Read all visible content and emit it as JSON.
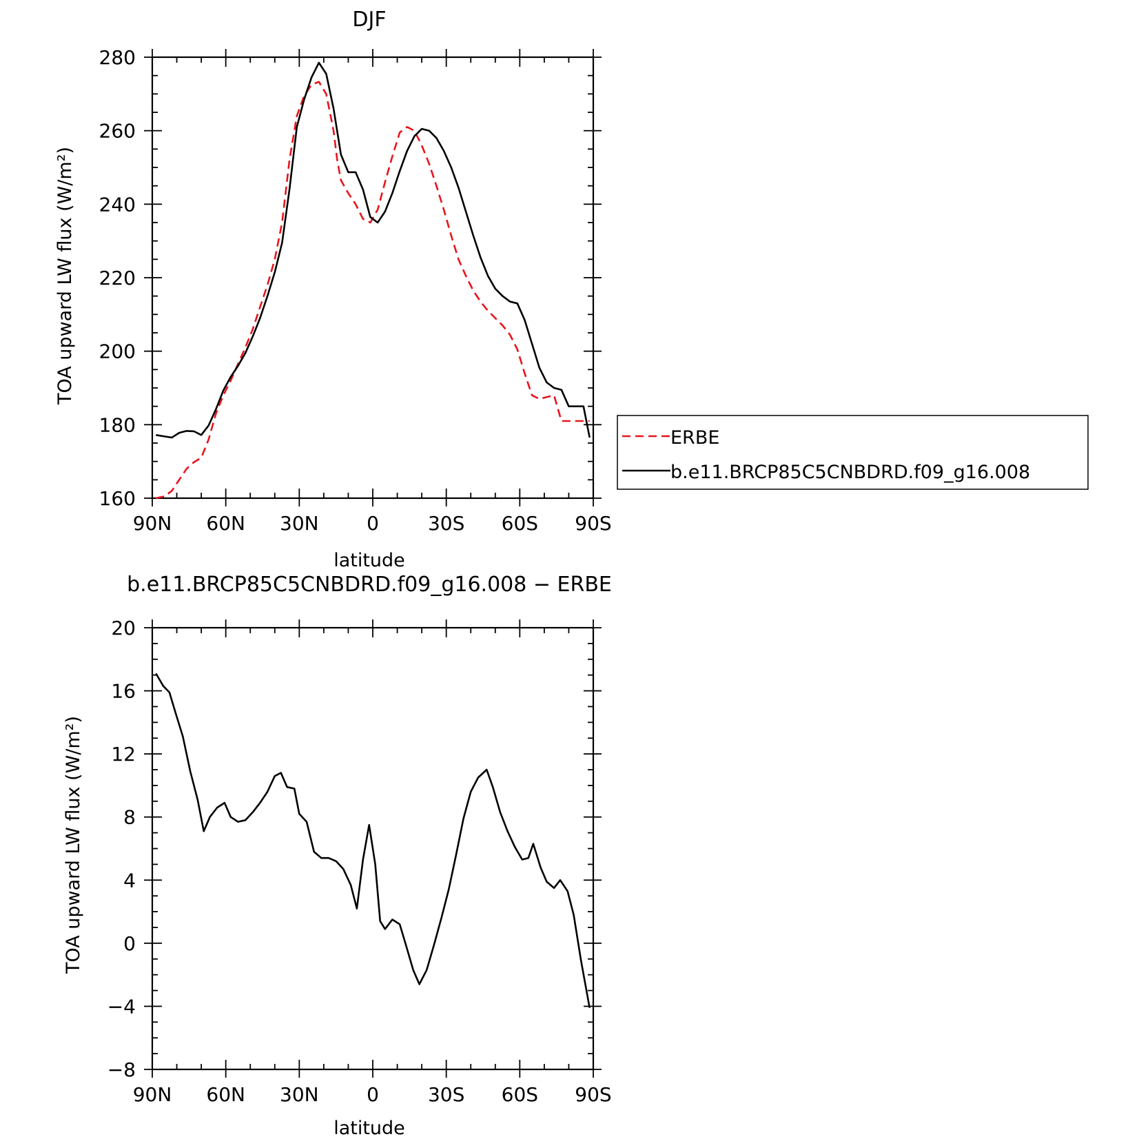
{
  "chart_data": [
    {
      "type": "line",
      "title": "DJF",
      "xlabel": "latitude",
      "ylabel": "TOA upward LW flux (W/m²)",
      "xlim": [
        90,
        -90
      ],
      "ylim": [
        160,
        280
      ],
      "x_ticks": [
        {
          "value": 90,
          "label": "90N"
        },
        {
          "value": 60,
          "label": "60N"
        },
        {
          "value": 30,
          "label": "30N"
        },
        {
          "value": 0,
          "label": "0"
        },
        {
          "value": -30,
          "label": "30S"
        },
        {
          "value": -60,
          "label": "60S"
        },
        {
          "value": -90,
          "label": "90S"
        }
      ],
      "y_ticks": [
        {
          "value": 160,
          "label": "160"
        },
        {
          "value": 180,
          "label": "180"
        },
        {
          "value": 200,
          "label": "200"
        },
        {
          "value": 220,
          "label": "220"
        },
        {
          "value": 240,
          "label": "240"
        },
        {
          "value": 260,
          "label": "260"
        },
        {
          "value": 280,
          "label": "280"
        }
      ],
      "legend": "right",
      "series": [
        {
          "name": "ERBE",
          "color": "#e8141c",
          "dash": true,
          "x": [
            88.5,
            85,
            82,
            79,
            76,
            73,
            70,
            67,
            64,
            61,
            58,
            55,
            52,
            49,
            46,
            43,
            40,
            37,
            34,
            31,
            28,
            25,
            22,
            19,
            16,
            14.5,
            13,
            10,
            7,
            4,
            1,
            -2,
            -5,
            -8,
            -11,
            -14,
            -17,
            -20,
            -23,
            -26,
            -29,
            -32,
            -35,
            -38,
            -41,
            -44,
            -47,
            -50,
            -53,
            -56,
            -59,
            -62,
            -65,
            -68,
            -71,
            -74,
            -77,
            -80,
            -83,
            -86,
            -88.5
          ],
          "y": [
            160,
            160.5,
            162,
            165,
            168,
            169.8,
            171,
            176,
            183,
            188,
            192,
            196.5,
            201,
            206,
            212,
            218,
            225,
            235,
            252,
            264,
            269.5,
            272.5,
            273.3,
            270,
            260,
            252,
            246.5,
            243,
            240,
            236,
            235,
            238.5,
            246,
            253,
            259.5,
            261,
            260,
            256,
            251,
            245,
            238.5,
            231.5,
            225,
            220.5,
            216.5,
            213.5,
            211,
            209,
            207,
            204.5,
            200.5,
            194,
            188,
            187,
            187.5,
            188,
            181,
            181,
            181,
            181,
            181
          ]
        },
        {
          "name": "b.e11.BRCP85C5CNBDRD.f09_g16.008",
          "color": "#000000",
          "dash": false,
          "x": [
            88.5,
            85,
            82,
            79,
            76,
            73,
            70,
            67,
            64,
            61,
            58,
            55,
            52,
            49,
            46,
            43,
            40,
            37,
            34,
            31,
            28,
            25,
            22,
            19,
            16,
            13,
            10,
            7,
            4,
            1,
            -2,
            -5,
            -8,
            -11,
            -14,
            -17,
            -20,
            -23,
            -26,
            -29,
            -32,
            -35,
            -38,
            -41,
            -44,
            -47,
            -50,
            -53,
            -56,
            -59,
            -62,
            -65,
            -68,
            -71,
            -74,
            -77,
            -80,
            -83,
            -86,
            -88.5
          ],
          "y": [
            177.2,
            176.8,
            176.5,
            177.8,
            178.3,
            178.2,
            177.2,
            179.8,
            184.2,
            189.3,
            193,
            196,
            199.5,
            204,
            209,
            215,
            221.5,
            229.5,
            244,
            261,
            268.5,
            274.5,
            278.5,
            275.5,
            266,
            253.5,
            248.7,
            248.7,
            244,
            236.5,
            235,
            238,
            243,
            249,
            254.5,
            258.5,
            260.5,
            260,
            258,
            254.5,
            250,
            244.5,
            238,
            231.5,
            225.5,
            220.5,
            217,
            215,
            213.5,
            213,
            208.5,
            202,
            195.5,
            191.5,
            190,
            189.5,
            185,
            185,
            185,
            176.5
          ]
        }
      ]
    },
    {
      "type": "line",
      "title": "b.e11.BRCP85C5CNBDRD.f09_g16.008 − ERBE",
      "xlabel": "latitude",
      "ylabel": "TOA upward LW flux (W/m²)",
      "xlim": [
        90,
        -90
      ],
      "ylim": [
        -8,
        20
      ],
      "x_ticks": [
        {
          "value": 90,
          "label": "90N"
        },
        {
          "value": 60,
          "label": "60N"
        },
        {
          "value": 30,
          "label": "30N"
        },
        {
          "value": 0,
          "label": "0"
        },
        {
          "value": -30,
          "label": "30S"
        },
        {
          "value": -60,
          "label": "60S"
        },
        {
          "value": -90,
          "label": "90S"
        }
      ],
      "y_ticks": [
        {
          "value": -8,
          "label": "−8"
        },
        {
          "value": -4,
          "label": "−4"
        },
        {
          "value": 0,
          "label": "0"
        },
        {
          "value": 4,
          "label": "4"
        },
        {
          "value": 8,
          "label": "8"
        },
        {
          "value": 12,
          "label": "12"
        },
        {
          "value": 16,
          "label": "16"
        },
        {
          "value": 20,
          "label": "20"
        }
      ],
      "series": [
        {
          "color": "#000000",
          "dash": false,
          "x": [
            88.5,
            85.5,
            83,
            80.5,
            77.5,
            74.5,
            71.5,
            69,
            66.5,
            63.5,
            60.5,
            58,
            55,
            52,
            49,
            46,
            43,
            40,
            37.5,
            35,
            32,
            30,
            27,
            24,
            21,
            18,
            15,
            12,
            9,
            6.5,
            4,
            1.5,
            -1,
            -3,
            -5,
            -8,
            -11,
            -13.5,
            -16.5,
            -19,
            -22,
            -25,
            -28,
            -31,
            -34,
            -37,
            -40,
            -43,
            -46.5,
            -49,
            -52,
            -55,
            -58,
            -61,
            -63.5,
            -65.5,
            -68.5,
            -71,
            -74,
            -76.5,
            -79.5,
            -82,
            -85,
            -88.5
          ],
          "y": [
            17.1,
            16.3,
            15.9,
            14.6,
            13.1,
            10.9,
            9.1,
            7.1,
            8.0,
            8.6,
            8.9,
            8.0,
            7.7,
            7.8,
            8.3,
            8.9,
            9.6,
            10.6,
            10.8,
            9.9,
            9.8,
            8.2,
            7.7,
            5.8,
            5.4,
            5.4,
            5.2,
            4.7,
            3.7,
            2.2,
            5.3,
            7.5,
            5.0,
            1.4,
            0.9,
            1.5,
            1.2,
            -0.1,
            -1.7,
            -2.6,
            -1.7,
            -0.1,
            1.6,
            3.4,
            5.6,
            7.9,
            9.6,
            10.5,
            11.0,
            9.9,
            8.3,
            7.1,
            6.1,
            5.3,
            5.4,
            6.3,
            4.8,
            3.9,
            3.5,
            4.0,
            3.3,
            1.8,
            -1.1,
            -4.1
          ]
        }
      ]
    }
  ]
}
